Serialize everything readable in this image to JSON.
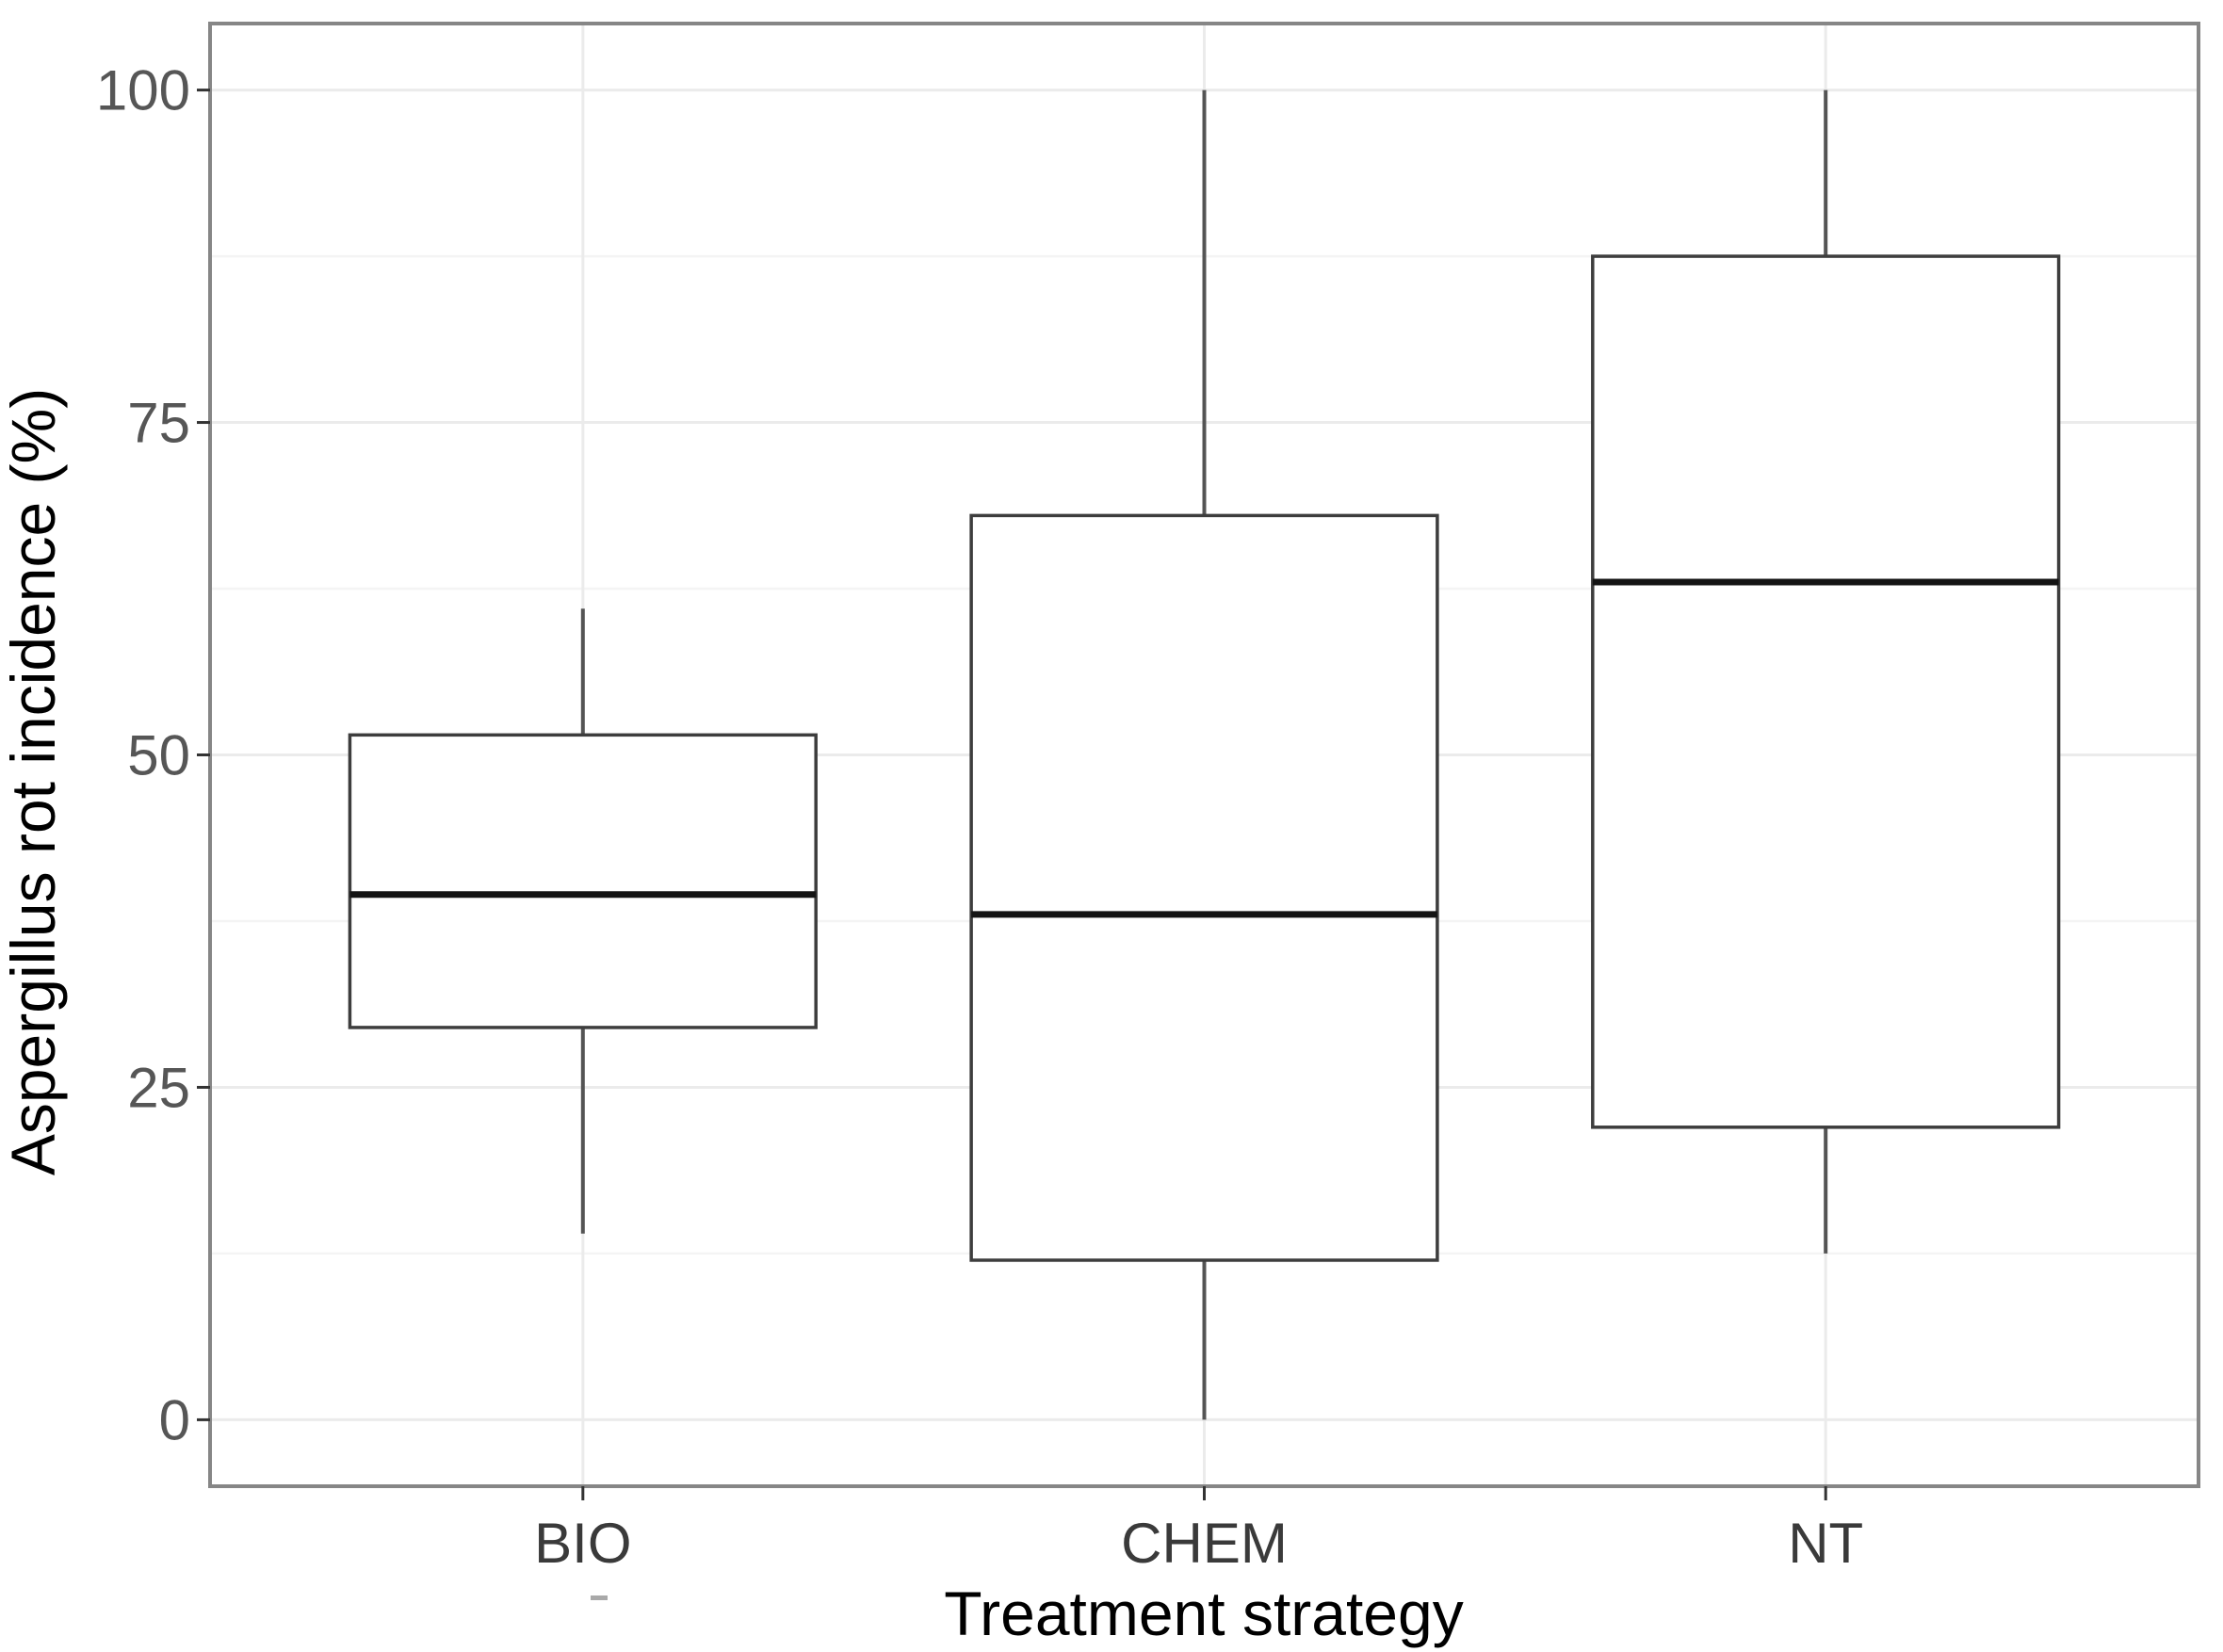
{
  "figure": {
    "background": "#ffffff"
  },
  "chart_data": {
    "type": "boxplot",
    "title": "",
    "xlabel": "Treatment strategy",
    "ylabel": "Aspergillus rot incidence (%)",
    "categories": [
      "BIO",
      "CHEM",
      "NT"
    ],
    "series": [
      {
        "name": "BIO",
        "whisker_low": 14,
        "q1": 29.5,
        "median": 39.5,
        "q3": 51.5,
        "whisker_high": 61
      },
      {
        "name": "CHEM",
        "whisker_low": 0,
        "q1": 12,
        "median": 38,
        "q3": 68,
        "whisker_high": 100
      },
      {
        "name": "NT",
        "whisker_low": 12.5,
        "q1": 22,
        "median": 63,
        "q3": 87.5,
        "whisker_high": 100
      }
    ],
    "y_ticks": [
      0,
      25,
      50,
      75,
      100
    ],
    "y_minor_gridlines": [
      12.5,
      37.5,
      62.5,
      87.5
    ],
    "ylim": [
      -5,
      105
    ],
    "grid": {
      "horizontal_major": true,
      "horizontal_minor": true,
      "vertical_at_categories": true
    },
    "legend": "none"
  },
  "colors": {
    "background": "#ffffff",
    "panel_border": "#868686",
    "grid_major": "#ebebeb",
    "grid_minor": "#f4f4f4",
    "box_fill": "#ffffff",
    "box_stroke": "#3d3d3d",
    "whisker": "#545454",
    "median": "#141414",
    "tick_mark": "#333333",
    "y_tick_label": "#565656",
    "x_tick_label": "#3a3a3a",
    "axis_title": "#000000"
  }
}
